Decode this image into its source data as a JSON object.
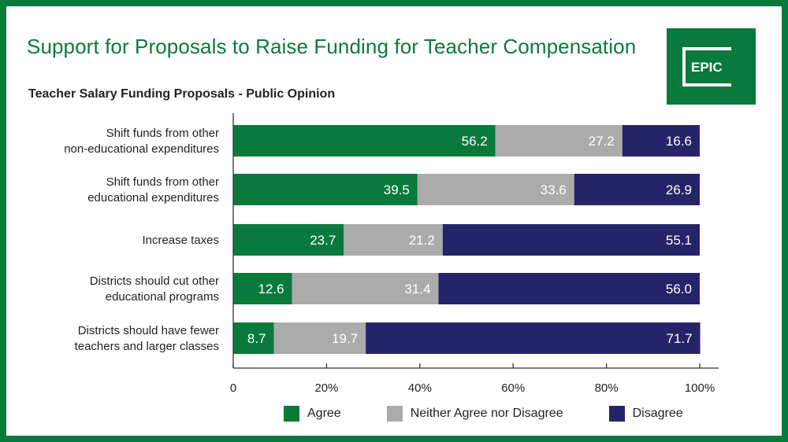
{
  "header": {
    "title": "Support for Proposals to Raise Funding for Teacher Compensation",
    "logo_text": "EPIC"
  },
  "colors": {
    "agree": "#0a7a3c",
    "neither": "#ababab",
    "disagree": "#262468",
    "text": "#222222"
  },
  "chart_data": {
    "type": "bar",
    "orientation": "horizontal",
    "stacked": true,
    "title": "Teacher Salary Funding Proposals - Public Opinion",
    "xlabel": "",
    "ylabel": "",
    "xlim": [
      0,
      100
    ],
    "x_ticks": [
      "0",
      "20%",
      "40%",
      "60%",
      "80%",
      "100%"
    ],
    "categories": [
      [
        "Shift funds from other",
        "non-educational expenditures"
      ],
      [
        "Shift funds from other",
        "educational expenditures"
      ],
      [
        "Increase taxes"
      ],
      [
        "Districts should cut other",
        "educational programs"
      ],
      [
        "Districts should have fewer",
        "teachers and larger classes"
      ]
    ],
    "series": [
      {
        "name": "Agree",
        "color": "#0a7a3c",
        "values": [
          56.2,
          39.5,
          23.7,
          12.6,
          8.7
        ],
        "labels": [
          "56.2",
          "39.5",
          "23.7",
          "12.6",
          "8.7"
        ]
      },
      {
        "name": "Neither Agree nor Disagree",
        "color": "#ababab",
        "values": [
          27.2,
          33.6,
          21.2,
          31.4,
          19.7
        ],
        "labels": [
          "27.2",
          "33.6",
          "21.2",
          "31.4",
          "19.7"
        ]
      },
      {
        "name": "Disagree",
        "color": "#262468",
        "values": [
          16.6,
          26.9,
          55.1,
          56.0,
          71.7
        ],
        "labels": [
          "16.6",
          "26.9",
          "55.1",
          "56.0",
          "71.7"
        ]
      }
    ],
    "legend_position": "bottom"
  }
}
